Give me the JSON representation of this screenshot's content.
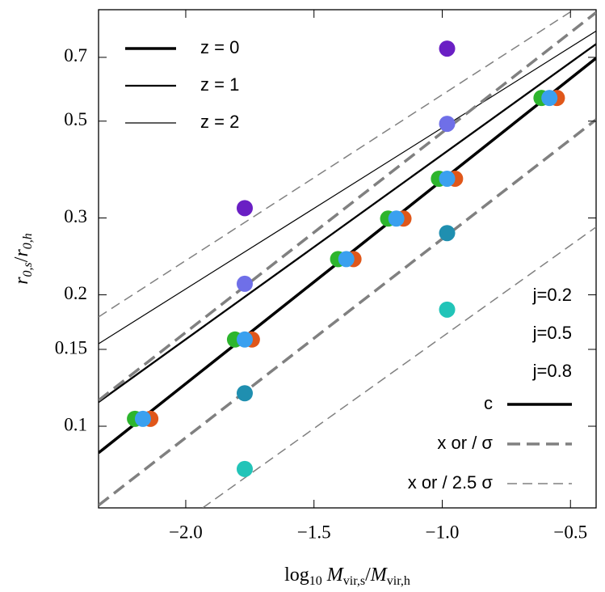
{
  "chart_data": {
    "type": "scatter",
    "xlabel_parts": [
      {
        "text": "log",
        "sub": "10"
      },
      {
        "text": " M",
        "sub": "vir,s",
        "italic": true
      },
      {
        "text": "/"
      },
      {
        "text": "M",
        "sub": "vir,h",
        "italic": true
      }
    ],
    "ylabel_parts": [
      {
        "text": "r",
        "sub": "0,s",
        "italic": true
      },
      {
        "text": "/"
      },
      {
        "text": "r",
        "sub": "0,h",
        "italic": true
      }
    ],
    "xlim": [
      -2.34,
      -0.4
    ],
    "ylim": [
      0.065,
      0.9
    ],
    "ylog": true,
    "grid": false,
    "xticks": [
      {
        "value": -2.0,
        "label": "−2.0"
      },
      {
        "value": -1.5,
        "label": "−1.5"
      },
      {
        "value": -1.0,
        "label": "−1.0"
      },
      {
        "value": -0.5,
        "label": "−0.5"
      }
    ],
    "yticks": [
      0.1,
      0.15,
      0.2,
      0.3,
      0.5,
      0.7
    ],
    "lines": [
      {
        "name": "z = 0",
        "color": "#000000",
        "width": 3.5,
        "x": [
          -2.34,
          -0.4
        ],
        "values": [
          0.0869,
          0.697
        ]
      },
      {
        "name": "z = 1",
        "color": "#000000",
        "width": 2.3,
        "x": [
          -2.34,
          -0.4
        ],
        "values": [
          0.1136,
          0.751
        ]
      },
      {
        "name": "z = 2",
        "color": "#000000",
        "width": 1.2,
        "x": [
          -2.34,
          -0.4
        ],
        "values": [
          0.1545,
          0.804
        ]
      },
      {
        "color": "#808080",
        "width": 3.5,
        "dash": "16 8",
        "x": [
          -2.34,
          -0.4
        ],
        "values": [
          0.1146,
          0.887
        ]
      },
      {
        "color": "#808080",
        "width": 3.5,
        "dash": "16 8",
        "x": [
          -2.34,
          -0.4
        ],
        "values": [
          0.0659,
          0.504
        ]
      },
      {
        "color": "#808080",
        "width": 1.5,
        "dash": "12 7",
        "x": [
          -2.34,
          -0.487
        ],
        "values": [
          0.178,
          0.9
        ]
      },
      {
        "color": "#808080",
        "width": 1.5,
        "dash": "12 7",
        "x": [
          -1.934,
          -0.4
        ],
        "values": [
          0.065,
          0.286
        ]
      }
    ],
    "series": [
      {
        "name": "j=0.2",
        "color": "#2db52d",
        "x": [
          -2.198,
          -1.808,
          -1.406,
          -1.211,
          -1.013,
          -0.613
        ],
        "values": [
          0.104,
          0.158,
          0.2415,
          0.299,
          0.369,
          0.565
        ]
      },
      {
        "name": "j=0.8",
        "color": "#e0571a",
        "x": [
          -2.138,
          -1.742,
          -1.346,
          -1.151,
          -0.95,
          -0.553
        ],
        "values": [
          0.104,
          0.158,
          0.2415,
          0.299,
          0.369,
          0.565
        ]
      },
      {
        "name": "j=0.5",
        "color": "#3aa0ef",
        "x": [
          -2.167,
          -1.77,
          -1.374,
          -1.179,
          -0.981,
          -0.582
        ],
        "values": [
          0.104,
          0.158,
          0.2415,
          0.299,
          0.369,
          0.565
        ]
      },
      {
        "color": "#6a1fc4",
        "x": [
          -1.77,
          -0.981
        ],
        "values": [
          0.316,
          0.733
        ]
      },
      {
        "color": "#6f6fe8",
        "x": [
          -1.77,
          -0.981
        ],
        "values": [
          0.212,
          0.493
        ]
      },
      {
        "color": "#1f8fb0",
        "x": [
          -1.77,
          -0.981
        ],
        "values": [
          0.119,
          0.277
        ]
      },
      {
        "color": "#22c4b8",
        "x": [
          -1.77,
          -0.981
        ],
        "values": [
          0.0798,
          0.185
        ]
      }
    ],
    "style_legend": [
      {
        "label": "c",
        "color": "#000000",
        "width": 3.5
      },
      {
        "label": "x or / σ",
        "color": "#808080",
        "width": 3.5,
        "dash": "16 8"
      },
      {
        "label": "x or / 2.5 σ",
        "color": "#808080",
        "width": 1.5,
        "dash": "12 7"
      }
    ]
  }
}
